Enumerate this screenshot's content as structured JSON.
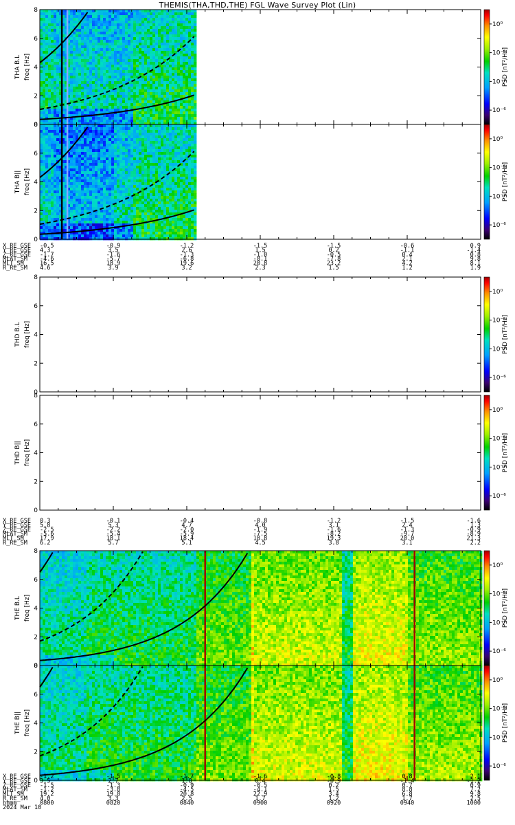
{
  "title": "THEMIS(THA,THD,THE) FGL Wave Survey Plot (Lin)",
  "chart_data": {
    "type": "heatmap",
    "x_range_minutes": [
      0,
      120
    ],
    "y_range_hz": [
      0,
      8
    ],
    "y_ticks": [
      "0",
      "2",
      "4",
      "6",
      "8"
    ],
    "colorbar": {
      "label": "PSD [nT²/Hz]",
      "ticks": [
        "10⁰",
        "10⁻²",
        "10⁻⁴",
        "10⁻⁶"
      ],
      "log_values": [
        0,
        -2,
        -4,
        -6
      ],
      "log_range": [
        -7,
        1
      ]
    },
    "panels": [
      {
        "probe": "THA",
        "component": "B.L",
        "ylabel": "freq [Hz]",
        "has_data": true,
        "data_end_min": 42,
        "variant": "tha"
      },
      {
        "probe": "THA",
        "component": "B||",
        "ylabel": "freq [Hz]",
        "has_data": true,
        "data_end_min": 42,
        "variant": "tha"
      },
      {
        "probe": "THD",
        "component": "B.L",
        "ylabel": "freq [Hz]",
        "has_data": false
      },
      {
        "probe": "THD",
        "component": "B||",
        "ylabel": "freq [Hz]",
        "has_data": false
      },
      {
        "probe": "THE",
        "component": "B.L",
        "ylabel": "freq [Hz]",
        "has_data": true,
        "data_end_min": 120,
        "variant": "the"
      },
      {
        "probe": "THE",
        "component": "B||",
        "ylabel": "freq [Hz]",
        "has_data": true,
        "data_end_min": 120,
        "variant": "the"
      }
    ],
    "ephemeris_blocks": [
      {
        "labels": [
          "X_RE_GSE",
          "Y_RE_GSE",
          "Z_RE_GSE",
          "MLAT_SM",
          "MLT_SM",
          "R_RE_SM"
        ],
        "columns": [
          [
            "-0.5",
            "4.3",
            "-1.7",
            "-4.6",
            "16.5",
            "4.6"
          ],
          [
            "-0.9",
            "3.5",
            "-1.6",
            "-5.7",
            "18.9",
            "3.9"
          ],
          [
            "-1.2",
            "2.6",
            "-1.3",
            "-6.8",
            "19.6",
            "3.2"
          ],
          [
            "-1.5",
            "1.5",
            "-1.0",
            "-8.1",
            "20.8",
            "2.3"
          ],
          [
            "-1.5",
            "0.2",
            "-0.5",
            "-7.8",
            "23.2",
            "1.5"
          ],
          [
            "-0.6",
            "-1.1",
            "0.4",
            "2.1",
            "4.2",
            "1.2"
          ],
          [
            "0.9",
            "-1.4",
            "0.8",
            "9.8",
            "8.1",
            "1.9"
          ]
        ]
      },
      {
        "labels": [
          "X_RE_GSE",
          "Y_RE_GSE",
          "Z_RE_GSE",
          "MLAT_SM",
          "MLT_SM",
          "R_RE_SM"
        ],
        "columns": [
          [
            "0.3",
            "5.8",
            "-2.5",
            "-5.6",
            "17.9",
            "6.2"
          ],
          [
            "-0.1",
            "5.3",
            "-2.2",
            "-5.4",
            "18.1",
            "5.7"
          ],
          [
            "-0.4",
            "4.7",
            "-2.0",
            "-5.9",
            "18.4",
            "5.1"
          ],
          [
            "-0.8",
            "4.0",
            "-1.9",
            "-7.5",
            "18.8",
            "4.5"
          ],
          [
            "-1.2",
            "3.1",
            "-1.6",
            "-8.2",
            "19.3",
            "3.8"
          ],
          [
            "-1.5",
            "2.4",
            "-1.3",
            "-9.7",
            "20.0",
            "3.1"
          ],
          [
            "-1.6",
            "1.3",
            "-0.9",
            "-8.9",
            "21.3",
            "2.2"
          ]
        ]
      },
      {
        "labels": [
          "X_RE_GSE",
          "Y_RE_GSE",
          "Z_RE_GSE",
          "MLAT_SM",
          "MLT_SM",
          "R_RE_SM",
          "hhmm",
          "2024 Mar 10"
        ],
        "columns": [
          [
            "-1.2",
            "3.5",
            "-1.5",
            "-1.2",
            "19.2",
            "4.0",
            "0800"
          ],
          [
            "-1.5",
            "2.7",
            "-1.3",
            "-3.8",
            "19.8",
            "3.3",
            "0820"
          ],
          [
            "-1.7",
            "1.8",
            "-0.9",
            "-4.5",
            "20.8",
            "2.5",
            "0840"
          ],
          [
            "-1.6",
            "0.4",
            "-0.5",
            "-4.1",
            "22.9",
            "1.7",
            "0900"
          ],
          [
            "-0.8",
            "-0.9",
            "0.2",
            "1.5",
            "3.4",
            "1.2",
            "0920"
          ],
          [
            "0.8",
            "-1.4",
            "0.7",
            "8.8",
            "6.8",
            "1.7",
            "0940"
          ],
          [
            "2.1",
            "-1.2",
            "0.9",
            "7.2",
            "9.8",
            "2.5",
            "1000"
          ]
        ]
      }
    ]
  }
}
